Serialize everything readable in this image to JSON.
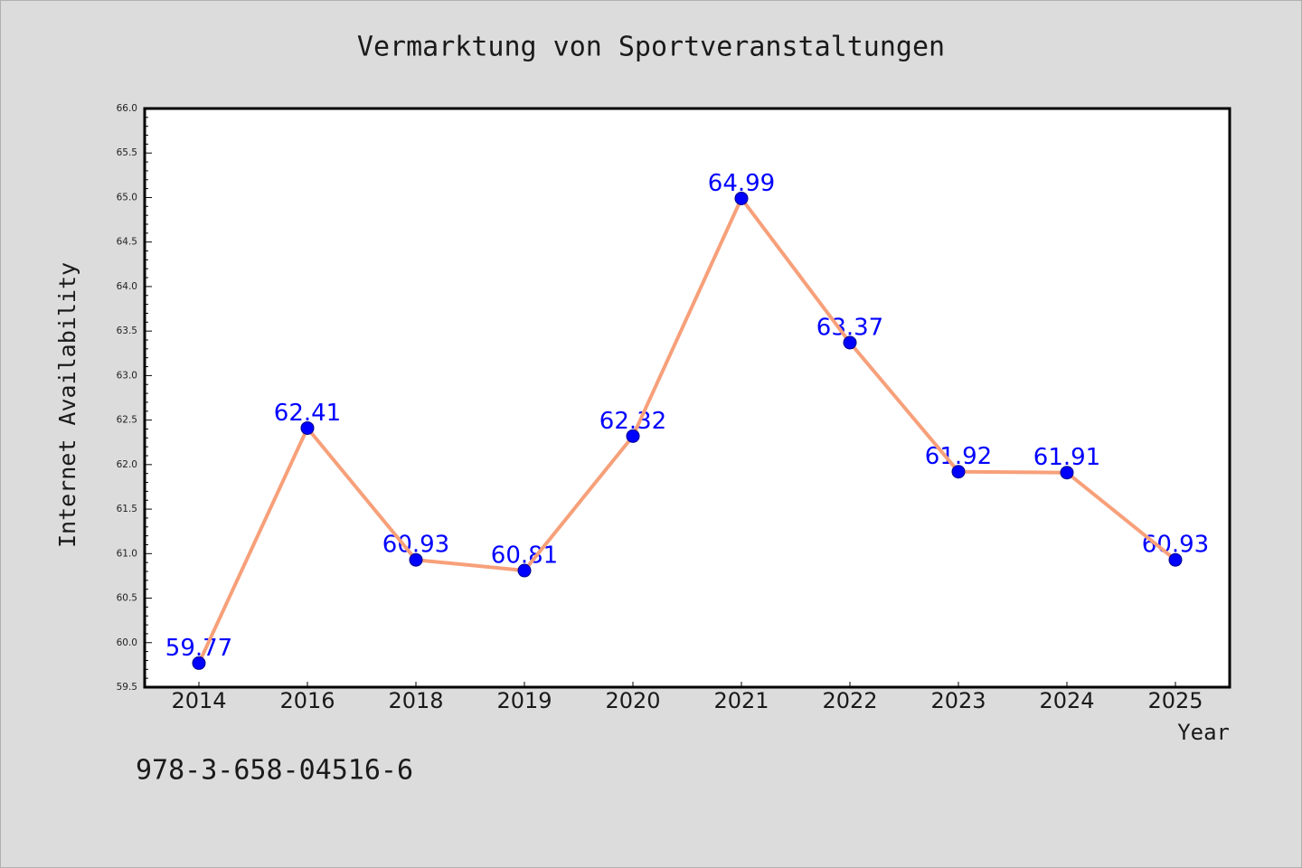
{
  "chart_data": {
    "type": "line",
    "title": "Vermarktung von Sportveranstaltungen",
    "xlabel": "Year",
    "ylabel": "Internet Availability",
    "categories": [
      "2014",
      "2016",
      "2018",
      "2019",
      "2020",
      "2021",
      "2022",
      "2023",
      "2024",
      "2025"
    ],
    "values": [
      59.77,
      62.41,
      60.93,
      60.81,
      62.32,
      64.99,
      63.37,
      61.92,
      61.91,
      60.93
    ],
    "ylim": [
      59.5,
      66.0
    ],
    "yticks": [
      "59.5",
      "60.0",
      "60.5",
      "61.0",
      "61.5",
      "62.0",
      "62.5",
      "63.0",
      "63.5",
      "64.0",
      "64.5",
      "65.0",
      "65.5",
      "66.0"
    ],
    "data_labels": true,
    "grid": false,
    "colors": {
      "background": "#dcdcdc",
      "plot_background": "#ffffff",
      "line": "#f7a07a",
      "marker": "#0000ff",
      "label": "#0000ff"
    },
    "annotations": [
      "978-3-658-04516-6"
    ]
  }
}
